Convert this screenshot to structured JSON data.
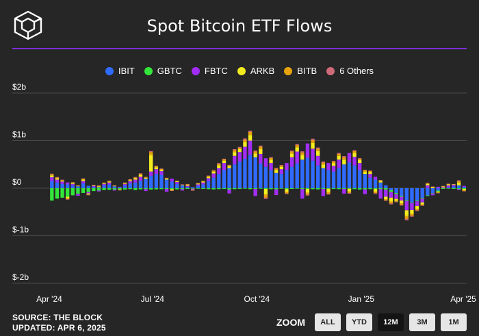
{
  "header": {
    "title": "Spot Bitcoin ETF Flows"
  },
  "legend": [
    {
      "name": "IBIT",
      "color": "#2f6bff"
    },
    {
      "name": "GBTC",
      "color": "#33e63a"
    },
    {
      "name": "FBTC",
      "color": "#a22ef5"
    },
    {
      "name": "ARKB",
      "color": "#f2ec1f"
    },
    {
      "name": "BITB",
      "color": "#e8a20c"
    },
    {
      "name": "6 Others",
      "color": "#d06a7a"
    }
  ],
  "footer": {
    "source": "SOURCE: THE BLOCK",
    "updated": "UPDATED: APR 6, 2025"
  },
  "zoom": {
    "label": "ZOOM",
    "buttons": [
      "ALL",
      "YTD",
      "12M",
      "3M",
      "1M"
    ],
    "active": "12M"
  },
  "chart_data": {
    "type": "bar",
    "stacked": true,
    "x_range": [
      "2024-04-01",
      "2025-04-04"
    ],
    "xticks": [
      {
        "label": "Apr '24",
        "date": "2024-04-01"
      },
      {
        "label": "Jul '24",
        "date": "2024-07-01"
      },
      {
        "label": "Oct '24",
        "date": "2024-10-01"
      },
      {
        "label": "Jan '25",
        "date": "2025-01-01"
      },
      {
        "label": "Apr '25",
        "date": "2025-04-01"
      }
    ],
    "yticks": [
      {
        "label": "$2b",
        "value": 2000
      },
      {
        "label": "$1b",
        "value": 1000
      },
      {
        "label": "$0",
        "value": 0
      },
      {
        "label": "$-1b",
        "value": -1000
      },
      {
        "label": "$-2b",
        "value": -2000
      }
    ],
    "ylim": [
      -2000,
      2000
    ],
    "unit": "USD millions",
    "grid": true,
    "legend_position": "top",
    "series": [
      {
        "name": "IBIT",
        "color": "#2f6bff",
        "values": [
          150,
          120,
          90,
          80,
          60,
          40,
          100,
          50,
          30,
          20,
          60,
          80,
          40,
          20,
          60,
          100,
          120,
          160,
          200,
          260,
          300,
          280,
          180,
          140,
          90,
          60,
          30,
          20,
          50,
          80,
          150,
          220,
          300,
          380,
          420,
          500,
          560,
          620,
          700,
          650,
          520,
          450,
          380,
          320,
          300,
          380,
          450,
          520,
          600,
          640,
          580,
          480,
          420,
          380,
          350,
          420,
          500,
          540,
          480,
          380,
          300,
          220,
          180,
          120,
          60,
          -40,
          -100,
          -160,
          -250,
          -300,
          -260,
          -200,
          -150,
          -100,
          -50,
          0,
          20,
          40,
          60,
          30
        ]
      },
      {
        "name": "GBTC",
        "color": "#33e63a",
        "values": [
          -260,
          -220,
          -200,
          -180,
          -150,
          -120,
          -100,
          -80,
          -60,
          -50,
          -40,
          -35,
          -30,
          -25,
          -30,
          -20,
          -40,
          -25,
          -20,
          -30,
          -25,
          -20,
          -15,
          -20,
          -25,
          -20,
          -15,
          -10,
          -10,
          -15,
          -20,
          -25,
          -20,
          -15,
          -30,
          -20,
          -15,
          -10,
          -20,
          -15,
          -10,
          -15,
          -20,
          -25,
          -10,
          -20,
          -15,
          -10,
          -20,
          -15,
          -20,
          -25,
          -15,
          -10,
          -15,
          -20,
          -15,
          -10,
          -20,
          -30,
          -25,
          -20,
          -15,
          -20,
          -30,
          -40,
          -25,
          -20,
          -15,
          -10,
          -15,
          -20,
          -15,
          -10,
          -20,
          -15,
          -10,
          -15,
          -20,
          -15
        ]
      },
      {
        "name": "FBTC",
        "color": "#a22ef5",
        "values": [
          80,
          60,
          50,
          40,
          30,
          -40,
          50,
          -30,
          20,
          -20,
          30,
          40,
          -20,
          10,
          30,
          50,
          60,
          80,
          -40,
          90,
          100,
          80,
          -60,
          60,
          40,
          -30,
          20,
          -20,
          30,
          40,
          60,
          90,
          120,
          150,
          -80,
          180,
          200,
          250,
          300,
          -150,
          200,
          180,
          150,
          -120,
          100,
          150,
          200,
          250,
          -200,
          300,
          250,
          200,
          -150,
          150,
          120,
          180,
          -100,
          200,
          180,
          150,
          -100,
          80,
          60,
          -200,
          -150,
          -120,
          -100,
          -80,
          -200,
          -150,
          -100,
          -80,
          60,
          -40,
          30,
          20,
          40,
          30,
          -20,
          20
        ]
      },
      {
        "name": "ARKB",
        "color": "#f2ec1f",
        "values": [
          40,
          30,
          20,
          -30,
          20,
          10,
          30,
          -20,
          10,
          20,
          15,
          20,
          10,
          -10,
          15,
          20,
          30,
          40,
          20,
          350,
          40,
          30,
          20,
          -20,
          15,
          10,
          20,
          -10,
          15,
          20,
          30,
          40,
          60,
          50,
          40,
          80,
          60,
          100,
          120,
          80,
          100,
          -120,
          70,
          60,
          50,
          -60,
          80,
          90,
          100,
          -80,
          120,
          100,
          80,
          -70,
          60,
          80,
          100,
          -60,
          80,
          60,
          50,
          40,
          -60,
          30,
          -50,
          -80,
          -40,
          -60,
          -120,
          -80,
          -60,
          -40,
          30,
          20,
          -20,
          15,
          20,
          10,
          60,
          -30
        ]
      },
      {
        "name": "BITB",
        "color": "#e8a20c",
        "values": [
          20,
          15,
          10,
          -20,
          10,
          5,
          15,
          -10,
          5,
          10,
          8,
          10,
          5,
          -5,
          8,
          10,
          15,
          20,
          10,
          60,
          20,
          15,
          10,
          -10,
          8,
          5,
          10,
          -5,
          8,
          10,
          15,
          20,
          30,
          25,
          20,
          40,
          30,
          50,
          60,
          40,
          50,
          -60,
          35,
          30,
          25,
          -30,
          40,
          45,
          50,
          -40,
          60,
          50,
          40,
          -35,
          30,
          40,
          50,
          -30,
          40,
          30,
          25,
          20,
          -30,
          15,
          -25,
          -40,
          -20,
          -30,
          -60,
          -40,
          -30,
          -20,
          15,
          10,
          -10,
          8,
          10,
          5,
          30,
          -15
        ]
      },
      {
        "name": "6 Others",
        "color": "#d06a7a",
        "values": [
          15,
          10,
          8,
          -10,
          8,
          5,
          10,
          -8,
          5,
          8,
          6,
          8,
          5,
          -4,
          6,
          8,
          10,
          12,
          8,
          20,
          12,
          10,
          8,
          -8,
          6,
          5,
          8,
          -4,
          6,
          8,
          10,
          12,
          18,
          15,
          12,
          20,
          18,
          25,
          30,
          20,
          25,
          -30,
          18,
          15,
          12,
          -15,
          20,
          22,
          25,
          -20,
          30,
          25,
          20,
          -18,
          15,
          20,
          25,
          -15,
          20,
          15,
          12,
          10,
          -15,
          8,
          -12,
          -20,
          -10,
          -15,
          -30,
          -20,
          -15,
          -10,
          8,
          5,
          -5,
          4,
          5,
          3,
          15,
          -8
        ]
      }
    ]
  }
}
